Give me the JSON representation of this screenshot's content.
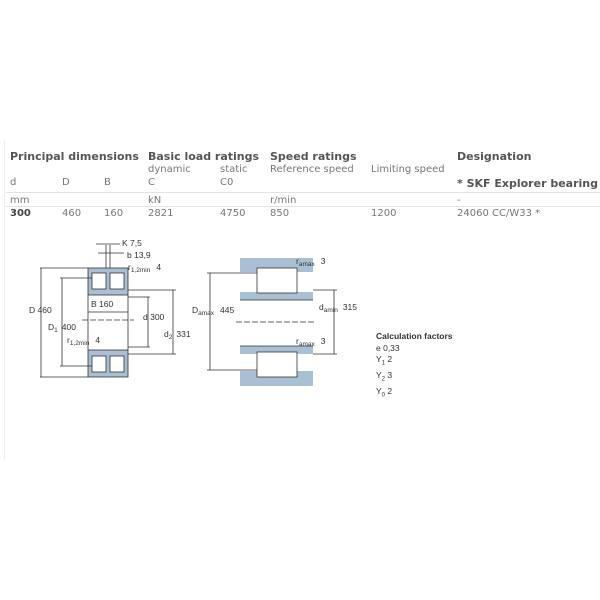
{
  "headers": {
    "principal": "Principal dimensions",
    "load": "Basic load ratings",
    "speed": "Speed ratings",
    "designation": "Designation"
  },
  "subheaders": {
    "d": "d",
    "D": "D",
    "B": "B",
    "dynamic": "dynamic",
    "C": "C",
    "static": "static",
    "C0": "C0",
    "reference": "Reference speed",
    "limiting": "Limiting speed",
    "explorer": "* SKF Explorer bearing"
  },
  "units": {
    "mm": "mm",
    "kN": "kN",
    "rmin": "r/min",
    "dash": "-"
  },
  "row": {
    "d": "300",
    "D": "460",
    "B": "160",
    "C": "2821",
    "C0": "4750",
    "ref": "850",
    "lim": "1200",
    "designation": "24060 CC/W33 *"
  },
  "drawing": {
    "K": "K 7,5",
    "b": "b 13,9",
    "r12_top": "4",
    "r12_bot": "4",
    "D": "D 460",
    "D1": "400",
    "B": "B 160",
    "d": "d 300",
    "d2": "331",
    "Damax": "445",
    "damin": "315",
    "ramax_top": "3",
    "ramax_bot": "3"
  },
  "calc": {
    "title": "Calculation factors",
    "e": "0,33",
    "Y1": "2",
    "Y2": "3",
    "Y0": "2"
  }
}
